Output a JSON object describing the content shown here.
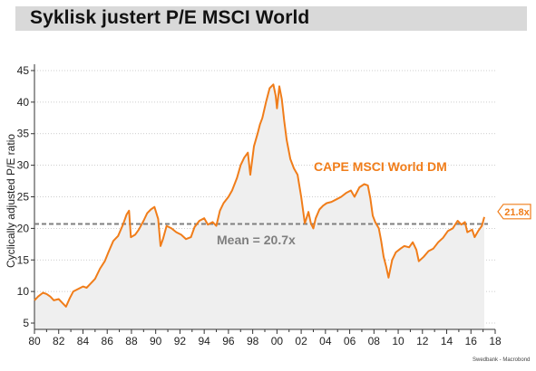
{
  "header": {
    "title": "Syklisk justert P/E MSCI World"
  },
  "source": "Swedbank - Macrobond",
  "colors": {
    "series": "#f07d1a",
    "area": "#efefef",
    "mean_line": "#7f7f7f",
    "mean_label": "#7f7f7f",
    "title_bar": "#d9d9d9"
  },
  "chart_data": {
    "type": "area",
    "title": "Syklisk justert P/E MSCI World",
    "ylabel": "Cyclically adjusted P/E ratio",
    "xlabel": "",
    "xlim": [
      1980,
      2018
    ],
    "ylim": [
      4,
      46
    ],
    "x_ticks": [
      "80",
      "82",
      "84",
      "86",
      "88",
      "90",
      "92",
      "94",
      "96",
      "98",
      "00",
      "02",
      "04",
      "06",
      "08",
      "10",
      "12",
      "14",
      "16",
      "18"
    ],
    "y_ticks": [
      "5",
      "10",
      "15",
      "20",
      "25",
      "30",
      "35",
      "40",
      "45"
    ],
    "grid": "horizontal dotted",
    "series": [
      {
        "name": "CAPE MSCI World DM",
        "x": [
          1980.0,
          1980.3,
          1980.7,
          1981.0,
          1981.3,
          1981.6,
          1982.0,
          1982.3,
          1982.6,
          1982.9,
          1983.2,
          1983.6,
          1984.0,
          1984.3,
          1984.6,
          1985.0,
          1985.4,
          1985.8,
          1986.1,
          1986.5,
          1986.9,
          1987.3,
          1987.6,
          1987.8,
          1987.95,
          1988.3,
          1988.6,
          1989.0,
          1989.3,
          1989.6,
          1989.9,
          1990.2,
          1990.4,
          1990.6,
          1990.9,
          1991.3,
          1991.7,
          1992.1,
          1992.5,
          1992.9,
          1993.2,
          1993.6,
          1994.0,
          1994.3,
          1994.7,
          1995.0,
          1995.3,
          1995.6,
          1996.0,
          1996.3,
          1996.7,
          1997.0,
          1997.3,
          1997.6,
          1997.8,
          1998.1,
          1998.4,
          1998.6,
          1998.8,
          1999.1,
          1999.4,
          1999.7,
          1999.9,
          2000.0,
          2000.2,
          2000.4,
          2000.6,
          2000.8,
          2001.1,
          2001.4,
          2001.7,
          2002.0,
          2002.3,
          2002.6,
          2002.8,
          2003.0,
          2003.2,
          2003.5,
          2003.8,
          2004.1,
          2004.5,
          2004.9,
          2005.3,
          2005.7,
          2006.1,
          2006.4,
          2006.8,
          2007.2,
          2007.5,
          2007.7,
          2007.9,
          2008.1,
          2008.4,
          2008.6,
          2008.8,
          2009.0,
          2009.2,
          2009.5,
          2009.8,
          2010.2,
          2010.5,
          2010.9,
          2011.2,
          2011.5,
          2011.7,
          2012.1,
          2012.5,
          2012.9,
          2013.3,
          2013.7,
          2014.1,
          2014.5,
          2014.9,
          2015.2,
          2015.5,
          2015.7,
          2016.1,
          2016.3,
          2016.6,
          2016.9,
          2017.1
        ],
        "y": [
          8.6,
          9.2,
          9.8,
          9.6,
          9.2,
          8.6,
          8.8,
          8.2,
          7.6,
          8.9,
          10.0,
          10.4,
          10.8,
          10.6,
          11.2,
          12.0,
          13.6,
          14.8,
          16.2,
          18.0,
          18.8,
          20.6,
          22.2,
          22.8,
          18.6,
          19.0,
          19.8,
          21.2,
          22.4,
          23.0,
          23.4,
          21.5,
          17.2,
          18.3,
          20.4,
          20.0,
          19.4,
          19.0,
          18.3,
          18.6,
          20.2,
          21.2,
          21.6,
          20.6,
          21.0,
          20.4,
          22.8,
          24.0,
          25.0,
          26.0,
          28.0,
          30.0,
          31.2,
          32.0,
          28.5,
          33.0,
          35.0,
          36.5,
          37.5,
          40.0,
          42.2,
          42.8,
          41.0,
          39.0,
          42.5,
          40.5,
          37.0,
          34.0,
          31.0,
          29.5,
          28.5,
          25.0,
          20.8,
          22.6,
          20.8,
          20.0,
          21.6,
          23.0,
          23.6,
          24.0,
          24.2,
          24.6,
          25.0,
          25.6,
          26.0,
          25.0,
          26.5,
          27.0,
          26.8,
          24.8,
          22.0,
          21.0,
          20.0,
          18.0,
          15.5,
          14.0,
          12.2,
          15.0,
          16.2,
          16.8,
          17.2,
          17.0,
          17.8,
          16.6,
          14.8,
          15.5,
          16.4,
          16.8,
          17.8,
          18.5,
          19.6,
          20.0,
          21.2,
          20.6,
          21.0,
          19.4,
          19.8,
          18.6,
          19.6,
          20.4,
          21.8
        ]
      }
    ],
    "annotations": {
      "series_label": "CAPE MSCI World DM",
      "mean_label": "Mean = 20.7x",
      "mean_value": 20.7,
      "last_value_label": "21.8x",
      "last_value": 21.8
    }
  }
}
